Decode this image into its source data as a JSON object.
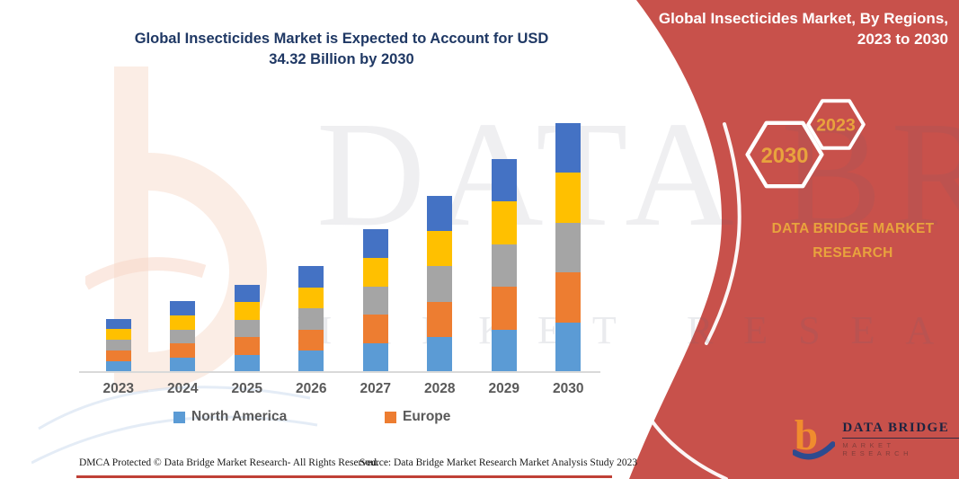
{
  "title": {
    "line1": "Global Insecticides Market is Expected to Account for USD",
    "line2": "34.32 Billion by 2030"
  },
  "side_panel": {
    "heading": "Global Insecticides Market, By Regions, 2023 to 2030",
    "hexagon_large_year": "2030",
    "hexagon_small_year": "2023",
    "brand_line1": "DATA BRIDGE MARKET",
    "brand_line2": "RESEARCH"
  },
  "chart_data": {
    "type": "bar",
    "stacked": true,
    "title": "Global Insecticides Market is Expected to Account for USD 34.32 Billion by 2030",
    "unit": "USD Billion (estimated from bar heights; 2030 total labeled 34.32)",
    "categories": [
      "2023",
      "2024",
      "2025",
      "2026",
      "2027",
      "2028",
      "2029",
      "2030"
    ],
    "totals": [
      7.4,
      9.8,
      12.1,
      14.6,
      19.7,
      24.3,
      29.4,
      34.32
    ],
    "series": [
      {
        "name": "North America",
        "labeled": true,
        "color": "#5B9BD5",
        "values": [
          1.48,
          1.96,
          2.42,
          2.92,
          3.94,
          4.86,
          5.88,
          6.86
        ]
      },
      {
        "name": "Europe",
        "labeled": true,
        "color": "#ED7D31",
        "values": [
          1.48,
          1.96,
          2.42,
          2.92,
          3.94,
          4.86,
          5.88,
          6.86
        ]
      },
      {
        "name": "unlabeled-gray",
        "labeled": false,
        "color": "#A5A5A5",
        "values": [
          1.48,
          1.96,
          2.42,
          2.92,
          3.94,
          4.86,
          5.88,
          6.86
        ]
      },
      {
        "name": "unlabeled-yellow",
        "labeled": false,
        "color": "#FFC000",
        "values": [
          1.48,
          1.96,
          2.42,
          2.92,
          3.94,
          4.86,
          5.88,
          6.86
        ]
      },
      {
        "name": "unlabeled-dark-blue",
        "labeled": false,
        "color": "#4472C4",
        "values": [
          1.48,
          1.96,
          2.42,
          2.92,
          3.94,
          4.86,
          5.88,
          6.86
        ]
      }
    ],
    "legend_position": "bottom",
    "grid": false,
    "y_axis_visible": false
  },
  "legend": {
    "items": [
      {
        "label": "North America",
        "color": "#5B9BD5"
      },
      {
        "label": "Europe",
        "color": "#ED7D31"
      }
    ]
  },
  "footer": {
    "dmca": "DMCA Protected © Data Bridge Market Research-  All Rights Reserved.",
    "source": "Source: Data Bridge Market Research  Market Analysis Study 2023"
  },
  "logo": {
    "line1": "DATA BRIDGE",
    "line2": "MARKET RESEARCH"
  },
  "watermark": {
    "line1": "DATA BRIDGE",
    "line2": "MARKET RESEARCH"
  },
  "colors": {
    "panel_red": "#C8514B",
    "title_navy": "#1F3864",
    "axis_label_gray": "#595959",
    "hexagon_text_orange": "#E8A33D",
    "axis_line": "#D9D9D9",
    "bottom_rule_red": "#BF4036"
  }
}
